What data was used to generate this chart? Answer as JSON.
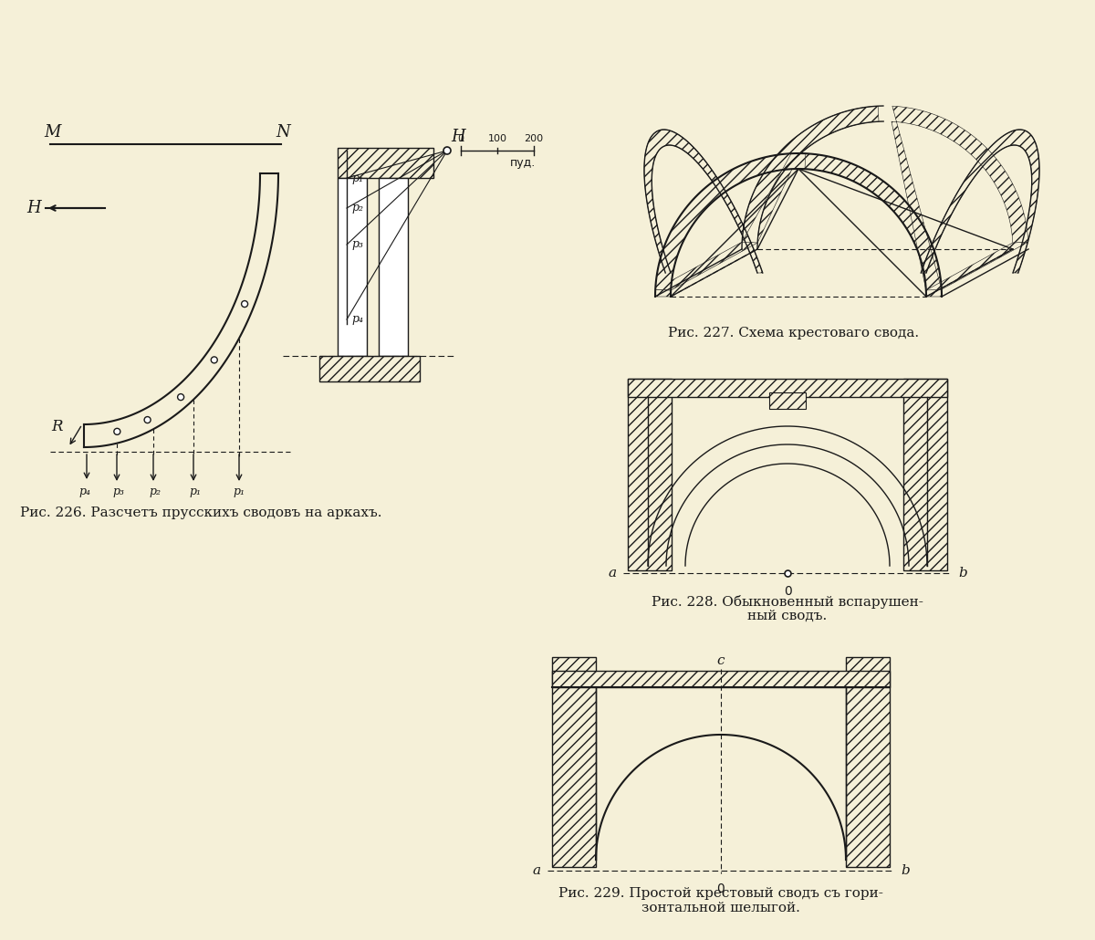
{
  "bg_color": "#f5f0d8",
  "line_color": "#1a1a1a",
  "caption_227": "Рис. 227. Схема крестоваго свода.",
  "caption_228_1": "Рис. 228. Обыкновенный вспарушен-",
  "caption_228_2": "ный сводъ.",
  "caption_229_1": "Рис. 229. Простой крестовый сводъ съ гори-",
  "caption_229_2": "зонтальной шелыгой.",
  "caption_226": "Рис. 226. Разсчетъ прусскихъ сводовъ на аркахъ.",
  "font_size_caption": 11,
  "font_size_label": 11
}
